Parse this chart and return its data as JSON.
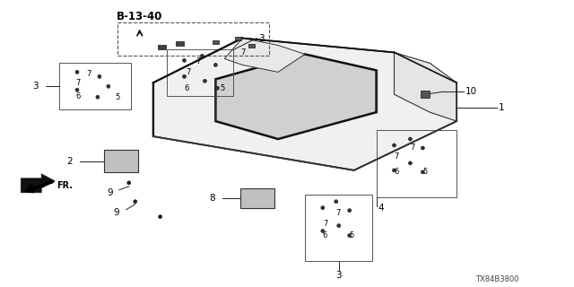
{
  "title": "B-13-40",
  "part_number": "TX84B3800",
  "bg": "#ffffff",
  "line_color": "#222222",
  "label_color": "#000000",
  "fig_width": 6.4,
  "fig_height": 3.2,
  "dpi": 100
}
